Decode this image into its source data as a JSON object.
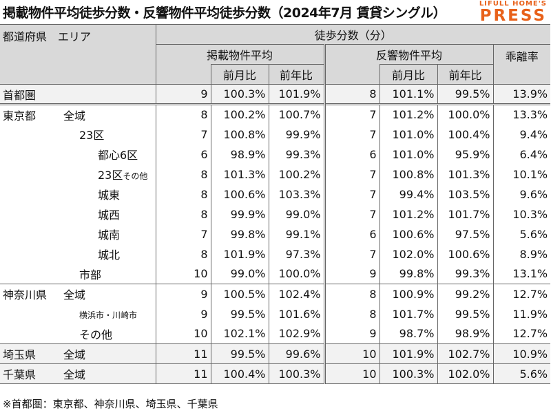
{
  "title": "掲載物件平均徒歩分数・反響物件平均徒歩分数（2024年7月 賃貸シングル）",
  "logo": {
    "line1": "LIFULL HOME'S",
    "line2": "PRESS"
  },
  "header": {
    "area": "都道府県　エリア",
    "walk": "徒歩分数（分）",
    "listing_avg": "掲載物件平均",
    "response_avg": "反響物件平均",
    "divergence": "乖離率",
    "mom": "前月比",
    "yoy": "前年比"
  },
  "rows": [
    {
      "pref": "首都圏",
      "area": "",
      "v1": "9",
      "v2": "100.3%",
      "v3": "101.9%",
      "v4": "8",
      "v5": "101.1%",
      "v6": "99.5%",
      "v7": "13.9%"
    },
    {
      "pref": "東京都",
      "area": "全域",
      "v1": "8",
      "v2": "100.2%",
      "v3": "100.7%",
      "v4": "7",
      "v5": "101.2%",
      "v6": "100.0%",
      "v7": "13.3%"
    },
    {
      "pref": "",
      "area": "23区",
      "v1": "7",
      "v2": "100.8%",
      "v3": "99.9%",
      "v4": "7",
      "v5": "101.0%",
      "v6": "100.4%",
      "v7": "9.4%"
    },
    {
      "pref": "",
      "area": "都心6区",
      "v1": "6",
      "v2": "98.9%",
      "v3": "99.3%",
      "v4": "6",
      "v5": "101.0%",
      "v6": "95.9%",
      "v7": "6.4%"
    },
    {
      "pref": "",
      "area": "23区",
      "area_small": "その他",
      "v1": "8",
      "v2": "101.3%",
      "v3": "100.2%",
      "v4": "7",
      "v5": "100.8%",
      "v6": "101.3%",
      "v7": "10.1%"
    },
    {
      "pref": "",
      "area": "城東",
      "v1": "8",
      "v2": "100.6%",
      "v3": "103.3%",
      "v4": "7",
      "v5": "99.4%",
      "v6": "103.5%",
      "v7": "9.6%"
    },
    {
      "pref": "",
      "area": "城西",
      "v1": "8",
      "v2": "99.9%",
      "v3": "99.0%",
      "v4": "7",
      "v5": "101.2%",
      "v6": "101.7%",
      "v7": "10.3%"
    },
    {
      "pref": "",
      "area": "城南",
      "v1": "7",
      "v2": "99.8%",
      "v3": "99.1%",
      "v4": "6",
      "v5": "100.6%",
      "v6": "97.5%",
      "v7": "5.6%"
    },
    {
      "pref": "",
      "area": "城北",
      "v1": "8",
      "v2": "101.9%",
      "v3": "97.3%",
      "v4": "7",
      "v5": "102.0%",
      "v6": "100.6%",
      "v7": "8.9%"
    },
    {
      "pref": "",
      "area": "市部",
      "v1": "10",
      "v2": "99.0%",
      "v3": "100.0%",
      "v4": "9",
      "v5": "99.8%",
      "v6": "99.3%",
      "v7": "13.1%"
    },
    {
      "pref": "神奈川県",
      "area": "全域",
      "v1": "9",
      "v2": "100.5%",
      "v3": "102.4%",
      "v4": "8",
      "v5": "100.9%",
      "v6": "99.2%",
      "v7": "12.7%"
    },
    {
      "pref": "",
      "area": "横浜市・川崎市",
      "v1": "9",
      "v2": "99.5%",
      "v3": "101.6%",
      "v4": "8",
      "v5": "101.7%",
      "v6": "99.5%",
      "v7": "11.9%"
    },
    {
      "pref": "",
      "area": "その他",
      "v1": "10",
      "v2": "102.1%",
      "v3": "102.9%",
      "v4": "9",
      "v5": "98.7%",
      "v6": "98.9%",
      "v7": "12.7%"
    },
    {
      "pref": "埼玉県",
      "area": "全域",
      "v1": "11",
      "v2": "99.5%",
      "v3": "99.6%",
      "v4": "10",
      "v5": "101.9%",
      "v6": "102.7%",
      "v7": "10.9%"
    },
    {
      "pref": "千葉県",
      "area": "全域",
      "v1": "11",
      "v2": "100.4%",
      "v3": "100.3%",
      "v4": "10",
      "v5": "100.3%",
      "v6": "102.0%",
      "v7": "5.6%"
    }
  ],
  "footnote": "※首都圏：東京都、神奈川県、埼玉県、千葉県"
}
